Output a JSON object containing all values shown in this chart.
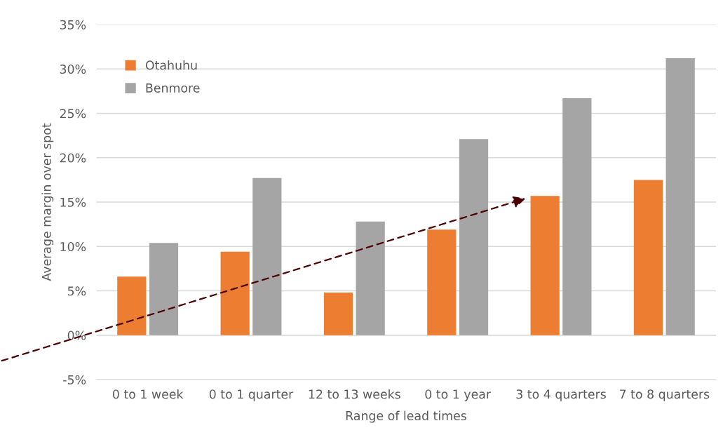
{
  "chart_data": {
    "type": "bar",
    "xlabel": "Range of lead times",
    "ylabel": "Average margin over spot",
    "categories": [
      "0 to 1 week",
      "0 to 1 quarter",
      "12 to 13 weeks",
      "0 to 1 year",
      "3 to 4 quarters",
      "7 to 8 quarters"
    ],
    "series": [
      {
        "name": "Otahuhu",
        "color": "#ed7d31",
        "values": [
          6.6,
          9.4,
          4.8,
          11.9,
          15.7,
          17.5
        ]
      },
      {
        "name": "Benmore",
        "color": "#a5a5a5",
        "values": [
          10.4,
          17.7,
          12.8,
          22.1,
          26.7,
          31.2
        ]
      }
    ],
    "ylim": [
      -5,
      35
    ],
    "yticks": [
      {
        "value": -5,
        "label": "-5%"
      },
      {
        "value": 0,
        "label": "0%"
      },
      {
        "value": 5,
        "label": "5%"
      },
      {
        "value": 10,
        "label": "10%"
      },
      {
        "value": 15,
        "label": "15%"
      },
      {
        "value": 20,
        "label": "20%"
      },
      {
        "value": 25,
        "label": "25%"
      },
      {
        "value": 30,
        "label": "30%"
      },
      {
        "value": 35,
        "label": "35%"
      }
    ],
    "grid": "y",
    "legend": "top left"
  }
}
